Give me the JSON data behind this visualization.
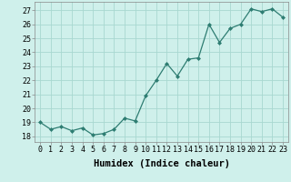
{
  "x": [
    0,
    1,
    2,
    3,
    4,
    5,
    6,
    7,
    8,
    9,
    10,
    11,
    12,
    13,
    14,
    15,
    16,
    17,
    18,
    19,
    20,
    21,
    22,
    23
  ],
  "y": [
    19.0,
    18.5,
    18.7,
    18.4,
    18.6,
    18.1,
    18.2,
    18.5,
    19.3,
    19.1,
    20.9,
    22.0,
    23.2,
    22.3,
    23.5,
    23.6,
    26.0,
    24.7,
    25.7,
    26.0,
    27.1,
    26.9,
    27.1,
    26.5
  ],
  "line_color": "#2e7d72",
  "marker": "D",
  "marker_size": 2.0,
  "bg_color": "#cff0eb",
  "grid_color": "#a8d8d0",
  "xlabel": "Humidex (Indice chaleur)",
  "ylabel_ticks": [
    18,
    19,
    20,
    21,
    22,
    23,
    24,
    25,
    26,
    27
  ],
  "xtick_labels": [
    "0",
    "1",
    "2",
    "3",
    "4",
    "5",
    "6",
    "7",
    "8",
    "9",
    "10",
    "11",
    "12",
    "13",
    "14",
    "15",
    "16",
    "17",
    "18",
    "19",
    "20",
    "21",
    "22",
    "23"
  ],
  "ylim": [
    17.6,
    27.6
  ],
  "xlim": [
    -0.5,
    23.5
  ],
  "xlabel_fontsize": 7.5,
  "tick_fontsize": 6.0,
  "linewidth": 0.9
}
